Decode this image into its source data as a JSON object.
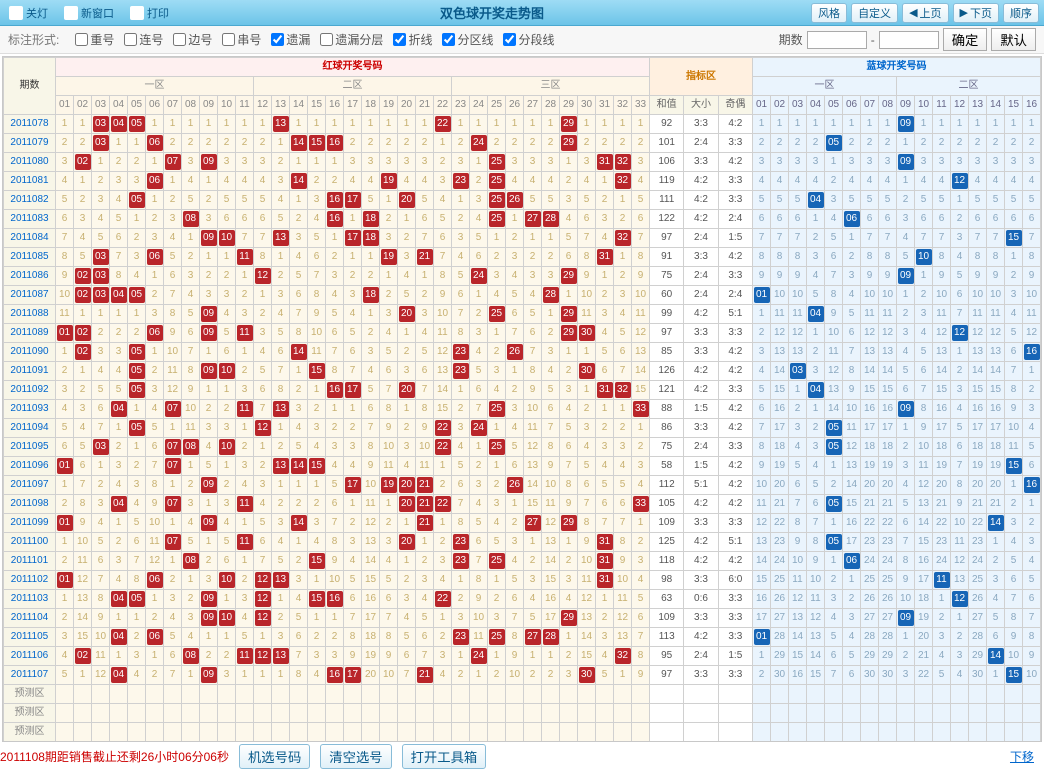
{
  "title": "双色球开奖走势图",
  "toolbar_left": [
    {
      "label": "关灯"
    },
    {
      "label": "新窗口"
    },
    {
      "label": "打印"
    }
  ],
  "toolbar_right": [
    {
      "label": "风格"
    },
    {
      "label": "自定义"
    },
    {
      "label": "上页"
    },
    {
      "label": "下页"
    },
    {
      "label": "顺序"
    }
  ],
  "options": {
    "label": "标注形式:",
    "items": [
      {
        "label": "重号",
        "checked": false
      },
      {
        "label": "连号",
        "checked": false
      },
      {
        "label": "边号",
        "checked": false
      },
      {
        "label": "串号",
        "checked": false
      },
      {
        "label": "遗漏",
        "checked": true
      },
      {
        "label": "遗漏分层",
        "checked": false
      },
      {
        "label": "折线",
        "checked": true
      },
      {
        "label": "分区线",
        "checked": true
      },
      {
        "label": "分段线",
        "checked": true
      }
    ],
    "period_label": "期数",
    "confirm": "确定",
    "default": "默认"
  },
  "headers": {
    "period": "期数",
    "red": "红球开奖号码",
    "blue": "蓝球开奖号码",
    "indicator": "指标区",
    "zones_red": [
      "一区",
      "二区",
      "三区"
    ],
    "zones_blue": [
      "一区",
      "二区"
    ],
    "ind_cols": [
      "和值",
      "大小",
      "奇偶"
    ],
    "predict": "预测区"
  },
  "colors": {
    "red_ball": "#b9252a",
    "blue_ball": "#1665b6",
    "red_zone_bg": "#fdf8eb",
    "blue_zone_bg": "#eaf4fd",
    "red_text": "#c7b070",
    "blue_text": "#8aa8c0",
    "toolbar_bg": "#7cc8e8"
  },
  "rows": [
    {
      "p": "2011078",
      "r": [
        3,
        5,
        13,
        22,
        29
      ],
      "b": 9,
      "ind": [
        "92",
        "3:3",
        "4:2"
      ],
      "r6": 4
    },
    {
      "p": "2011079",
      "r": [
        3,
        6,
        14,
        15,
        16,
        24,
        29
      ],
      "b": 5,
      "ind": [
        "101",
        "2:4",
        "3:3"
      ]
    },
    {
      "p": "2011080",
      "r": [
        2,
        7,
        9,
        25,
        31,
        32
      ],
      "b": 9,
      "ind": [
        "106",
        "3:3",
        "4:2"
      ]
    },
    {
      "p": "2011081",
      "r": [
        6,
        14,
        23,
        25,
        32
      ],
      "b": 12,
      "ind": [
        "119",
        "4:2",
        "3:3"
      ],
      "r6": 19
    },
    {
      "p": "2011082",
      "r": [
        5,
        16,
        17,
        20,
        25,
        26
      ],
      "b": 4,
      "ind": [
        "111",
        "4:2",
        "3:3"
      ]
    },
    {
      "p": "2011083",
      "r": [
        8,
        16,
        18,
        25,
        28
      ],
      "b": 6,
      "ind": [
        "122",
        "4:2",
        "2:4"
      ],
      "r6": 27
    },
    {
      "p": "2011084",
      "r": [
        9,
        10,
        13,
        17,
        18,
        32
      ],
      "b": 15,
      "ind": [
        "97",
        "2:4",
        "1:5"
      ]
    },
    {
      "p": "2011085",
      "r": [
        3,
        6,
        11,
        21,
        31
      ],
      "b": 10,
      "ind": [
        "91",
        "3:3",
        "4:2"
      ],
      "r6": 19
    },
    {
      "p": "2011086",
      "r": [
        2,
        3,
        12,
        24
      ],
      "b": 9,
      "ind": [
        "75",
        "2:4",
        "3:3"
      ],
      "r6": 29
    },
    {
      "p": "2011087",
      "r": [
        2,
        3,
        4,
        18,
        28
      ],
      "b": 1,
      "ind": [
        "60",
        "2:4",
        "2:4"
      ],
      "r6": 5
    },
    {
      "p": "2011088",
      "r": [
        9,
        20,
        29
      ],
      "b": 4,
      "ind": [
        "99",
        "4:2",
        "5:1"
      ],
      "r6": 25
    },
    {
      "p": "2011089",
      "r": [
        1,
        2,
        6,
        9,
        11,
        29,
        30
      ],
      "b": 12,
      "ind": [
        "97",
        "3:3",
        "3:3"
      ]
    },
    {
      "p": "2011090",
      "r": [
        2,
        5,
        14,
        23
      ],
      "b": 16,
      "ind": [
        "85",
        "3:3",
        "4:2"
      ],
      "r6": 26
    },
    {
      "p": "2011091",
      "r": [
        5,
        9,
        10,
        15,
        23,
        30
      ],
      "b": 3,
      "ind": [
        "126",
        "4:2",
        "4:2"
      ]
    },
    {
      "p": "2011092",
      "r": [
        5,
        16,
        17,
        31,
        32
      ],
      "b": 4,
      "ind": [
        "121",
        "4:2",
        "3:3"
      ],
      "r6": 20
    },
    {
      "p": "2011093",
      "r": [
        4,
        7,
        11,
        13,
        25,
        33
      ],
      "b": 9,
      "ind": [
        "88",
        "1:5",
        "4:2"
      ]
    },
    {
      "p": "2011094",
      "r": [
        5,
        12,
        24
      ],
      "b": 5,
      "ind": [
        "86",
        "3:3",
        "4:2"
      ],
      "r6": 22
    },
    {
      "p": "2011095",
      "r": [
        3,
        8,
        10,
        22,
        25
      ],
      "b": 5,
      "ind": [
        "75",
        "2:4",
        "3:3"
      ],
      "r6": 7
    },
    {
      "p": "2011096",
      "r": [
        1,
        7,
        13,
        14
      ],
      "b": 15,
      "ind": [
        "58",
        "1:5",
        "4:2"
      ],
      "r6": 15
    },
    {
      "p": "2011097",
      "r": [
        9,
        19,
        20,
        21,
        26
      ],
      "b": 16,
      "ind": [
        "112",
        "5:1",
        "4:2"
      ],
      "r6": 17
    },
    {
      "p": "2011098",
      "r": [
        4,
        7,
        11,
        20,
        21,
        22,
        33
      ],
      "b": 5,
      "ind": [
        "105",
        "4:2",
        "4:2"
      ]
    },
    {
      "p": "2011099",
      "r": [
        9,
        14,
        21,
        27,
        29
      ],
      "b": 14,
      "ind": [
        "109",
        "3:3",
        "3:3"
      ],
      "r6": 1
    },
    {
      "p": "2011100",
      "r": [
        7,
        11,
        23,
        31
      ],
      "b": 5,
      "ind": [
        "125",
        "4:2",
        "5:1"
      ],
      "r6": 20
    },
    {
      "p": "2011101",
      "r": [
        15,
        23,
        25,
        31
      ],
      "b": 6,
      "ind": [
        "118",
        "4:2",
        "4:2"
      ],
      "r6": 8
    },
    {
      "p": "2011102",
      "r": [
        1,
        6,
        10,
        12,
        31
      ],
      "b": 11,
      "ind": [
        "98",
        "3:3",
        "6:0"
      ],
      "r6": 13
    },
    {
      "p": "2011103",
      "r": [
        4,
        5,
        9,
        12,
        15,
        16,
        22
      ],
      "b": 12,
      "ind": [
        "63",
        "0:6",
        "3:3"
      ]
    },
    {
      "p": "2011104",
      "r": [
        9,
        10,
        29
      ],
      "b": 9,
      "ind": [
        "109",
        "3:3",
        "3:3"
      ],
      "r6": 12
    },
    {
      "p": "2011105",
      "r": [
        4,
        6,
        23,
        25,
        27,
        28
      ],
      "b": 1,
      "ind": [
        "113",
        "4:2",
        "3:3"
      ]
    },
    {
      "p": "2011106",
      "r": [
        2,
        8,
        11,
        12,
        13,
        24,
        32
      ],
      "b": 14,
      "ind": [
        "95",
        "2:4",
        "1:5"
      ]
    },
    {
      "p": "2011107",
      "r": [
        4,
        9,
        16,
        17,
        21
      ],
      "b": 15,
      "ind": [
        "97",
        "3:3",
        "3:3"
      ],
      "r6": 30
    }
  ],
  "bottom": {
    "countdown": "2011108期距销售截止还剩26小时06分06秒",
    "btns": [
      "机选号码",
      "清空选号",
      "打开工具箱"
    ],
    "link": "下移"
  }
}
